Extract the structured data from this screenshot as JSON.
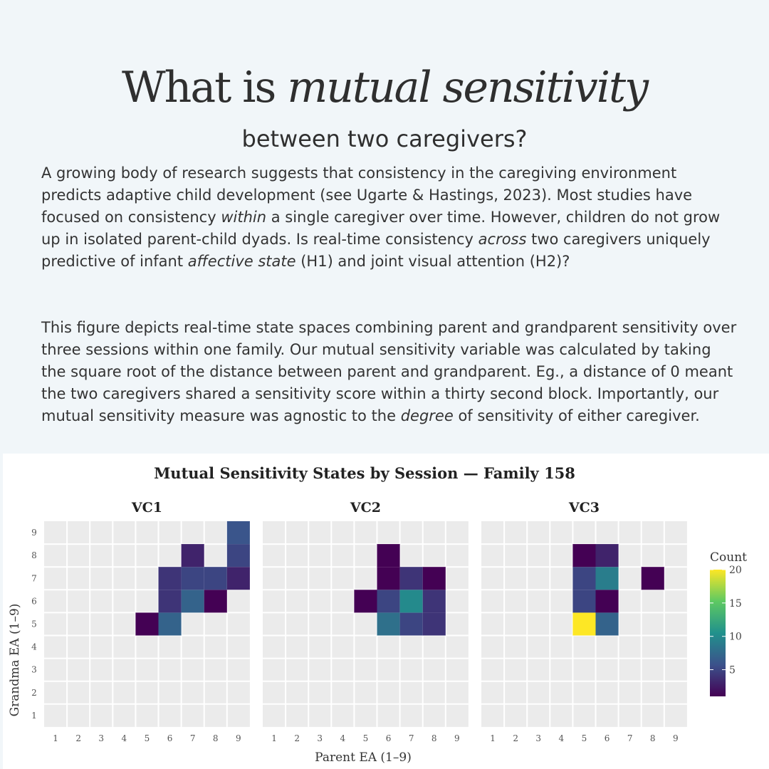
{
  "heading": {
    "title_plain": "What is ",
    "title_italic": "mutual sensitivity",
    "subtitle": "between two caregivers?"
  },
  "paragraph1": {
    "s1": "A growing body of research suggests that consistency in the caregiving environment predicts adaptive child development (see Ugarte & Hastings, 2023). Most studies have focused on consistency ",
    "em1": "within",
    "s2": " a single caregiver over time. However, children do not grow up in isolated parent-child dyads. Is real-time consistency ",
    "em2": "across",
    "s3": " two caregivers uniquely predictive of infant ",
    "em3": "affective state",
    "s4": " (H1) and joint visual attention (H2)?"
  },
  "paragraph2": {
    "s1": "This figure depicts real-time state spaces combining parent and grandparent sensitivity over three sessions within one family. Our mutual sensitivity variable was calculated by taking the square root of the distance between parent and grandparent. Eg., a distance of 0 meant the two caregivers shared a sensitivity score within a thirty second block. Importantly, our mutual sensitivity measure was agnostic to the ",
    "em1": "degree",
    "s2": " of sensitivity of either caregiver."
  },
  "chart_data": {
    "type": "heatmap",
    "title": "Mutual Sensitivity States by Session — Family 158",
    "xlabel": "Parent EA (1–9)",
    "ylabel": "Grandma EA (1–9)",
    "x_ticks": [
      1,
      2,
      3,
      4,
      5,
      6,
      7,
      8,
      9
    ],
    "y_ticks": [
      1,
      2,
      3,
      4,
      5,
      6,
      7,
      8,
      9
    ],
    "color_scale": "viridis",
    "legend": {
      "title": "Count",
      "ticks": [
        5,
        10,
        15,
        20
      ],
      "range": [
        1,
        20
      ]
    },
    "panels": [
      {
        "name": "VC1",
        "cells": [
          {
            "x": 5,
            "y": 5,
            "count": 1
          },
          {
            "x": 6,
            "y": 5,
            "count": 7
          },
          {
            "x": 6,
            "y": 6,
            "count": 4
          },
          {
            "x": 6,
            "y": 7,
            "count": 4
          },
          {
            "x": 7,
            "y": 6,
            "count": 7
          },
          {
            "x": 7,
            "y": 7,
            "count": 5
          },
          {
            "x": 7,
            "y": 8,
            "count": 3
          },
          {
            "x": 8,
            "y": 6,
            "count": 1
          },
          {
            "x": 8,
            "y": 7,
            "count": 5
          },
          {
            "x": 9,
            "y": 7,
            "count": 3
          },
          {
            "x": 9,
            "y": 8,
            "count": 5
          },
          {
            "x": 9,
            "y": 9,
            "count": 6
          }
        ]
      },
      {
        "name": "VC2",
        "cells": [
          {
            "x": 5,
            "y": 6,
            "count": 1
          },
          {
            "x": 6,
            "y": 5,
            "count": 8
          },
          {
            "x": 6,
            "y": 6,
            "count": 5
          },
          {
            "x": 6,
            "y": 7,
            "count": 1
          },
          {
            "x": 6,
            "y": 8,
            "count": 1
          },
          {
            "x": 7,
            "y": 5,
            "count": 5
          },
          {
            "x": 7,
            "y": 6,
            "count": 10
          },
          {
            "x": 7,
            "y": 7,
            "count": 4
          },
          {
            "x": 8,
            "y": 5,
            "count": 4
          },
          {
            "x": 8,
            "y": 6,
            "count": 4
          },
          {
            "x": 8,
            "y": 7,
            "count": 1
          }
        ]
      },
      {
        "name": "VC3",
        "cells": [
          {
            "x": 5,
            "y": 5,
            "count": 20
          },
          {
            "x": 5,
            "y": 6,
            "count": 5
          },
          {
            "x": 5,
            "y": 7,
            "count": 5
          },
          {
            "x": 5,
            "y": 8,
            "count": 1
          },
          {
            "x": 6,
            "y": 5,
            "count": 7
          },
          {
            "x": 6,
            "y": 6,
            "count": 1
          },
          {
            "x": 6,
            "y": 7,
            "count": 9
          },
          {
            "x": 6,
            "y": 8,
            "count": 3
          },
          {
            "x": 8,
            "y": 7,
            "count": 1
          }
        ]
      }
    ]
  }
}
